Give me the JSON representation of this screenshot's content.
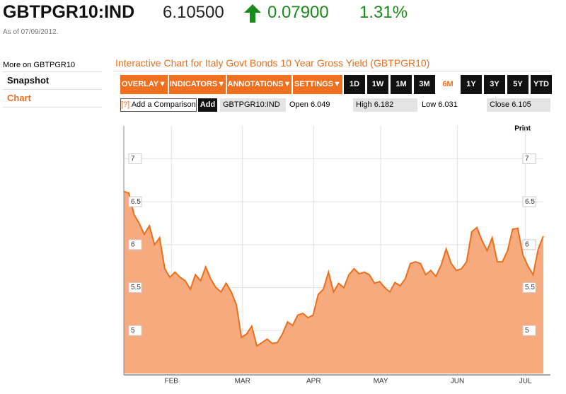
{
  "header": {
    "symbol": "GBTPGR10:IND",
    "price": "6.10500",
    "change": "0.07900",
    "change_pct": "1.31%",
    "as_of": "As of 07/09/2012."
  },
  "sidebar": {
    "heading": "More on GBTPGR10",
    "links": [
      "Snapshot",
      "Chart"
    ],
    "active_link": "Chart"
  },
  "chart_title": "Interactive Chart for Italy Govt Bonds 10 Year Gross Yield (GBTPGR10)",
  "toolbar": {
    "menus": [
      "OVERLAY▼",
      "INDICATORS▼",
      "ANNOTATIONS▼",
      "SETTINGS▼"
    ],
    "ranges": [
      "1D",
      "1W",
      "1M",
      "3M",
      "6M",
      "1Y",
      "3Y",
      "5Y",
      "YTD"
    ],
    "active_range": "6M"
  },
  "quote_bar": {
    "help": "[?]",
    "comparison": "Add a Comparison",
    "add": "Add",
    "symbol": "GBTPGR10:IND",
    "open": {
      "label": "Open",
      "value": 6.049
    },
    "high": {
      "label": "High",
      "value": 6.182
    },
    "low": {
      "label": "Low",
      "value": 6.031
    },
    "close": {
      "label": "Close",
      "value": 6.105
    }
  },
  "chart_data": {
    "type": "area",
    "print_label": "Print",
    "color": "#f7aa7e",
    "line_color": "#e8701f",
    "grid": true,
    "xlim": [
      0,
      82
    ],
    "xticks": [
      {
        "value": 9.3,
        "label": "FEB"
      },
      {
        "value": 23.2,
        "label": "MAR"
      },
      {
        "value": 37.1,
        "label": "APR"
      },
      {
        "value": 50.2,
        "label": "MAY"
      },
      {
        "value": 65.2,
        "label": "JUN"
      },
      {
        "value": 78.5,
        "label": "JUL"
      }
    ],
    "ylim": [
      4.5,
      7.3
    ],
    "yticks": [
      5,
      5.5,
      6,
      6.5,
      7
    ],
    "values": [
      6.62,
      6.6,
      6.35,
      6.25,
      6.12,
      6.22,
      6.0,
      6.08,
      5.72,
      5.62,
      5.68,
      5.62,
      5.58,
      5.48,
      5.65,
      5.58,
      5.74,
      5.6,
      5.5,
      5.45,
      5.55,
      5.45,
      5.3,
      4.92,
      4.96,
      5.05,
      4.82,
      4.86,
      4.9,
      4.85,
      4.86,
      4.96,
      5.1,
      5.06,
      5.18,
      5.2,
      5.15,
      5.18,
      5.42,
      5.48,
      5.68,
      5.45,
      5.55,
      5.5,
      5.65,
      5.72,
      5.66,
      5.68,
      5.65,
      5.55,
      5.57,
      5.5,
      5.45,
      5.56,
      5.52,
      5.6,
      5.78,
      5.8,
      5.78,
      5.65,
      5.7,
      5.63,
      5.76,
      5.95,
      5.78,
      5.7,
      5.72,
      5.8,
      6.15,
      6.2,
      6.05,
      5.93,
      6.08,
      5.8,
      5.8,
      5.93,
      6.18,
      6.19,
      5.88,
      5.75,
      5.65,
      5.95,
      6.1
    ]
  }
}
